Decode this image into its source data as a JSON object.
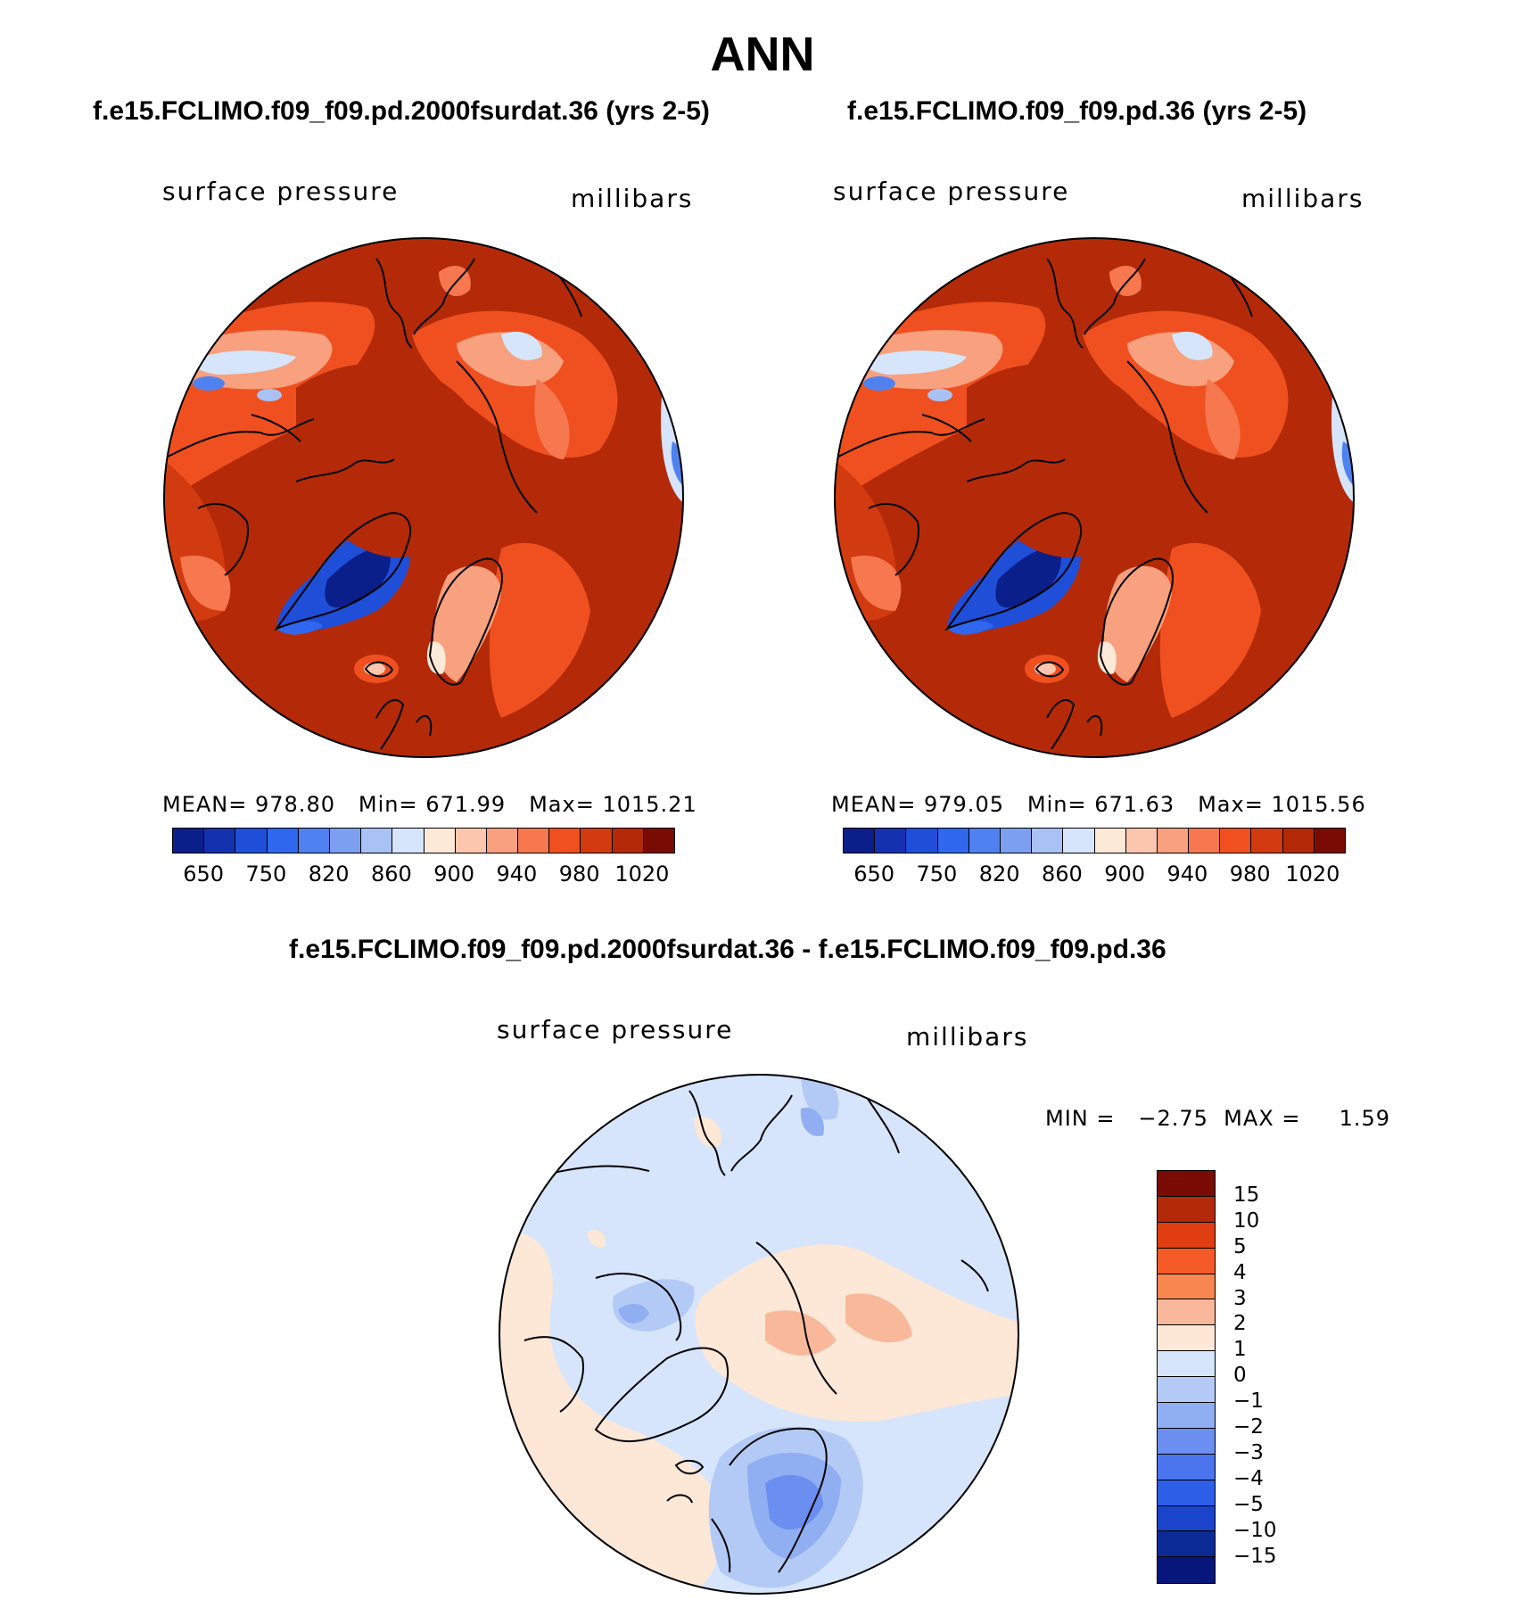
{
  "page": {
    "title": "ANN"
  },
  "colors": {
    "abs_scale": [
      "#0b1f8a",
      "#1432b0",
      "#1f4fd8",
      "#2f67ee",
      "#4f82f0",
      "#7d9ff2",
      "#a9c2f6",
      "#d6e5fb",
      "#fde9d8",
      "#fbc6ad",
      "#f9a07e",
      "#f7784f",
      "#f0501f",
      "#d23a10",
      "#b42a08",
      "#7a0b02"
    ],
    "diff_scale": [
      "#7a0b02",
      "#b42a08",
      "#e03e10",
      "#f65a26",
      "#f8864f",
      "#f9b89a",
      "#fde7d6",
      "#d6e5fb",
      "#b4caf6",
      "#90aef2",
      "#6b8ff0",
      "#4a75ee",
      "#2c5ee8",
      "#1a44cc",
      "#0c2a96",
      "#06167a"
    ]
  },
  "panels": [
    {
      "title": "f.e15.FCLIMO.f09_f09.pd.2000fsurdat.36 (yrs 2-5)",
      "variable": "surface pressure",
      "units": "millibars",
      "mean_label": "MEAN=",
      "mean": "978.80",
      "min_label": "Min=",
      "min": "671.99",
      "max_label": "Max=",
      "max": "1015.21",
      "ticks": [
        "650",
        "750",
        "820",
        "860",
        "900",
        "940",
        "980",
        "1020"
      ]
    },
    {
      "title": "f.e15.FCLIMO.f09_f09.pd.36 (yrs 2-5)",
      "variable": "surface pressure",
      "units": "millibars",
      "mean_label": "MEAN=",
      "mean": "979.05",
      "min_label": "Min=",
      "min": "671.63",
      "max_label": "Max=",
      "max": "1015.56",
      "ticks": [
        "650",
        "750",
        "820",
        "860",
        "900",
        "940",
        "980",
        "1020"
      ]
    }
  ],
  "diff": {
    "title": "f.e15.FCLIMO.f09_f09.pd.2000fsurdat.36 - f.e15.FCLIMO.f09_f09.pd.36",
    "variable": "surface pressure",
    "units": "millibars",
    "minmax_text": "MIN =   −2.75  MAX =     1.59",
    "ticks": [
      "15",
      "10",
      "5",
      "4",
      "3",
      "2",
      "1",
      "0",
      "−1",
      "−2",
      "−3",
      "−4",
      "−5",
      "−10",
      "−15"
    ]
  },
  "chart_data": [
    {
      "type": "heatmap",
      "title": "f.e15.FCLIMO.f09_f09.pd.2000fsurdat.36 (yrs 2-5)",
      "projection": "north polar stereographic",
      "variable": "surface pressure",
      "units": "millibars",
      "mean": 978.8,
      "min": 671.99,
      "max": 1015.21,
      "levels": [
        650,
        700,
        750,
        800,
        820,
        840,
        860,
        880,
        900,
        920,
        940,
        960,
        980,
        1000,
        1020
      ],
      "tick_labels": [
        "650",
        "750",
        "820",
        "860",
        "900",
        "940",
        "980",
        "1020"
      ]
    },
    {
      "type": "heatmap",
      "title": "f.e15.FCLIMO.f09_f09.pd.36 (yrs 2-5)",
      "projection": "north polar stereographic",
      "variable": "surface pressure",
      "units": "millibars",
      "mean": 979.05,
      "min": 671.63,
      "max": 1015.56,
      "levels": [
        650,
        700,
        750,
        800,
        820,
        840,
        860,
        880,
        900,
        920,
        940,
        960,
        980,
        1000,
        1020
      ],
      "tick_labels": [
        "650",
        "750",
        "820",
        "860",
        "900",
        "940",
        "980",
        "1020"
      ]
    },
    {
      "type": "heatmap",
      "title": "f.e15.FCLIMO.f09_f09.pd.2000fsurdat.36 - f.e15.FCLIMO.f09_f09.pd.36",
      "projection": "north polar stereographic",
      "variable": "surface pressure",
      "units": "millibars",
      "min": -2.75,
      "max": 1.59,
      "levels": [
        15,
        10,
        5,
        4,
        3,
        2,
        1,
        0,
        -1,
        -2,
        -3,
        -4,
        -5,
        -10,
        -15
      ],
      "legend": "right"
    }
  ]
}
